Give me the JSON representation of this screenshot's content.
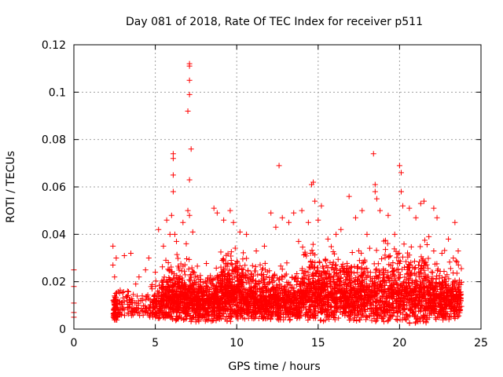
{
  "chart_data": {
    "type": "scatter",
    "title": "Day 081 of 2018, Rate Of TEC Index for receiver p511",
    "xlabel": "GPS time / hours",
    "ylabel": "ROTI / TECUs",
    "xlim": [
      0,
      25
    ],
    "ylim": [
      0,
      0.12
    ],
    "xticks": [
      0,
      5,
      10,
      15,
      20,
      25
    ],
    "xtick_labels": [
      "0",
      "5",
      "10",
      "15",
      "20",
      "25"
    ],
    "yticks": [
      0,
      0.02,
      0.04,
      0.06,
      0.08,
      0.1,
      0.12
    ],
    "ytick_labels": [
      "0",
      "0.02",
      "0.04",
      "0.06",
      "0.08",
      "0.1",
      "0.12"
    ],
    "grid": true,
    "marker": "+",
    "color": "#ff0000",
    "series": [
      {
        "name": "ROTI",
        "points": [
          [
            0.0,
            0.025
          ],
          [
            0.0,
            0.018
          ],
          [
            0.0,
            0.011
          ],
          [
            0.0,
            0.007
          ],
          [
            0.0,
            0.005
          ],
          [
            2.4,
            0.035
          ],
          [
            2.4,
            0.027
          ],
          [
            2.5,
            0.022
          ],
          [
            2.5,
            0.014
          ],
          [
            2.5,
            0.009
          ],
          [
            2.6,
            0.005
          ],
          [
            2.6,
            0.012
          ],
          [
            2.6,
            0.03
          ],
          [
            3.1,
            0.031
          ],
          [
            3.3,
            0.016
          ],
          [
            3.5,
            0.032
          ],
          [
            3.6,
            0.012
          ],
          [
            3.8,
            0.019
          ],
          [
            4.0,
            0.022
          ],
          [
            4.2,
            0.014
          ],
          [
            4.4,
            0.025
          ],
          [
            4.6,
            0.03
          ],
          [
            4.8,
            0.017
          ],
          [
            5.0,
            0.024
          ],
          [
            5.2,
            0.042
          ],
          [
            5.5,
            0.035
          ],
          [
            5.7,
            0.046
          ],
          [
            5.8,
            0.028
          ],
          [
            5.9,
            0.04
          ],
          [
            6.1,
            0.074
          ],
          [
            6.1,
            0.072
          ],
          [
            6.1,
            0.065
          ],
          [
            6.1,
            0.058
          ],
          [
            6.0,
            0.048
          ],
          [
            6.2,
            0.04
          ],
          [
            6.3,
            0.037
          ],
          [
            6.7,
            0.045
          ],
          [
            6.9,
            0.036
          ],
          [
            7.1,
            0.112
          ],
          [
            7.1,
            0.111
          ],
          [
            7.1,
            0.105
          ],
          [
            7.1,
            0.099
          ],
          [
            7.0,
            0.092
          ],
          [
            7.2,
            0.076
          ],
          [
            7.1,
            0.063
          ],
          [
            7.0,
            0.05
          ],
          [
            7.1,
            0.048
          ],
          [
            7.3,
            0.041
          ],
          [
            8.6,
            0.051
          ],
          [
            8.8,
            0.049
          ],
          [
            9.2,
            0.046
          ],
          [
            9.6,
            0.05
          ],
          [
            9.8,
            0.045
          ],
          [
            10.2,
            0.041
          ],
          [
            10.6,
            0.04
          ],
          [
            11.2,
            0.033
          ],
          [
            11.7,
            0.035
          ],
          [
            12.1,
            0.049
          ],
          [
            12.4,
            0.043
          ],
          [
            12.6,
            0.069
          ],
          [
            12.8,
            0.047
          ],
          [
            13.2,
            0.045
          ],
          [
            13.5,
            0.049
          ],
          [
            13.8,
            0.037
          ],
          [
            14.0,
            0.05
          ],
          [
            14.4,
            0.045
          ],
          [
            14.7,
            0.062
          ],
          [
            14.6,
            0.061
          ],
          [
            14.8,
            0.054
          ],
          [
            15.0,
            0.046
          ],
          [
            15.2,
            0.052
          ],
          [
            15.6,
            0.038
          ],
          [
            16.1,
            0.04
          ],
          [
            16.4,
            0.042
          ],
          [
            16.9,
            0.056
          ],
          [
            17.3,
            0.047
          ],
          [
            17.7,
            0.05
          ],
          [
            18.0,
            0.04
          ],
          [
            18.4,
            0.074
          ],
          [
            18.5,
            0.061
          ],
          [
            18.5,
            0.058
          ],
          [
            18.6,
            0.055
          ],
          [
            18.8,
            0.05
          ],
          [
            19.3,
            0.048
          ],
          [
            19.7,
            0.04
          ],
          [
            20.0,
            0.069
          ],
          [
            20.1,
            0.066
          ],
          [
            20.1,
            0.058
          ],
          [
            20.2,
            0.052
          ],
          [
            20.6,
            0.051
          ],
          [
            21.0,
            0.047
          ],
          [
            21.3,
            0.053
          ],
          [
            21.5,
            0.054
          ],
          [
            21.8,
            0.039
          ],
          [
            22.1,
            0.051
          ],
          [
            22.3,
            0.047
          ],
          [
            22.6,
            0.032
          ],
          [
            23.0,
            0.038
          ],
          [
            23.3,
            0.03
          ],
          [
            23.4,
            0.045
          ],
          [
            23.6,
            0.033
          ]
        ]
      }
    ],
    "dense_band": [
      {
        "x_start": 2.4,
        "x_end": 2.7,
        "y_low": 0.003,
        "y_high": 0.02,
        "count": 60
      },
      {
        "x_start": 2.7,
        "x_end": 4.7,
        "y_low": 0.005,
        "y_high": 0.02,
        "count": 110
      },
      {
        "x_start": 4.7,
        "x_end": 5.4,
        "y_low": 0.004,
        "y_high": 0.026,
        "count": 90
      },
      {
        "x_start": 5.4,
        "x_end": 7.6,
        "y_low": 0.003,
        "y_high": 0.034,
        "count": 520
      },
      {
        "x_start": 7.6,
        "x_end": 9.0,
        "y_low": 0.003,
        "y_high": 0.03,
        "count": 330
      },
      {
        "x_start": 9.0,
        "x_end": 10.6,
        "y_low": 0.003,
        "y_high": 0.04,
        "count": 420
      },
      {
        "x_start": 10.6,
        "x_end": 14.0,
        "y_low": 0.003,
        "y_high": 0.032,
        "count": 680
      },
      {
        "x_start": 14.0,
        "x_end": 16.0,
        "y_low": 0.003,
        "y_high": 0.04,
        "count": 450
      },
      {
        "x_start": 16.0,
        "x_end": 19.0,
        "y_low": 0.003,
        "y_high": 0.038,
        "count": 620
      },
      {
        "x_start": 19.0,
        "x_end": 21.8,
        "y_low": 0.002,
        "y_high": 0.042,
        "count": 560
      },
      {
        "x_start": 21.8,
        "x_end": 23.8,
        "y_low": 0.003,
        "y_high": 0.034,
        "count": 420
      }
    ]
  }
}
